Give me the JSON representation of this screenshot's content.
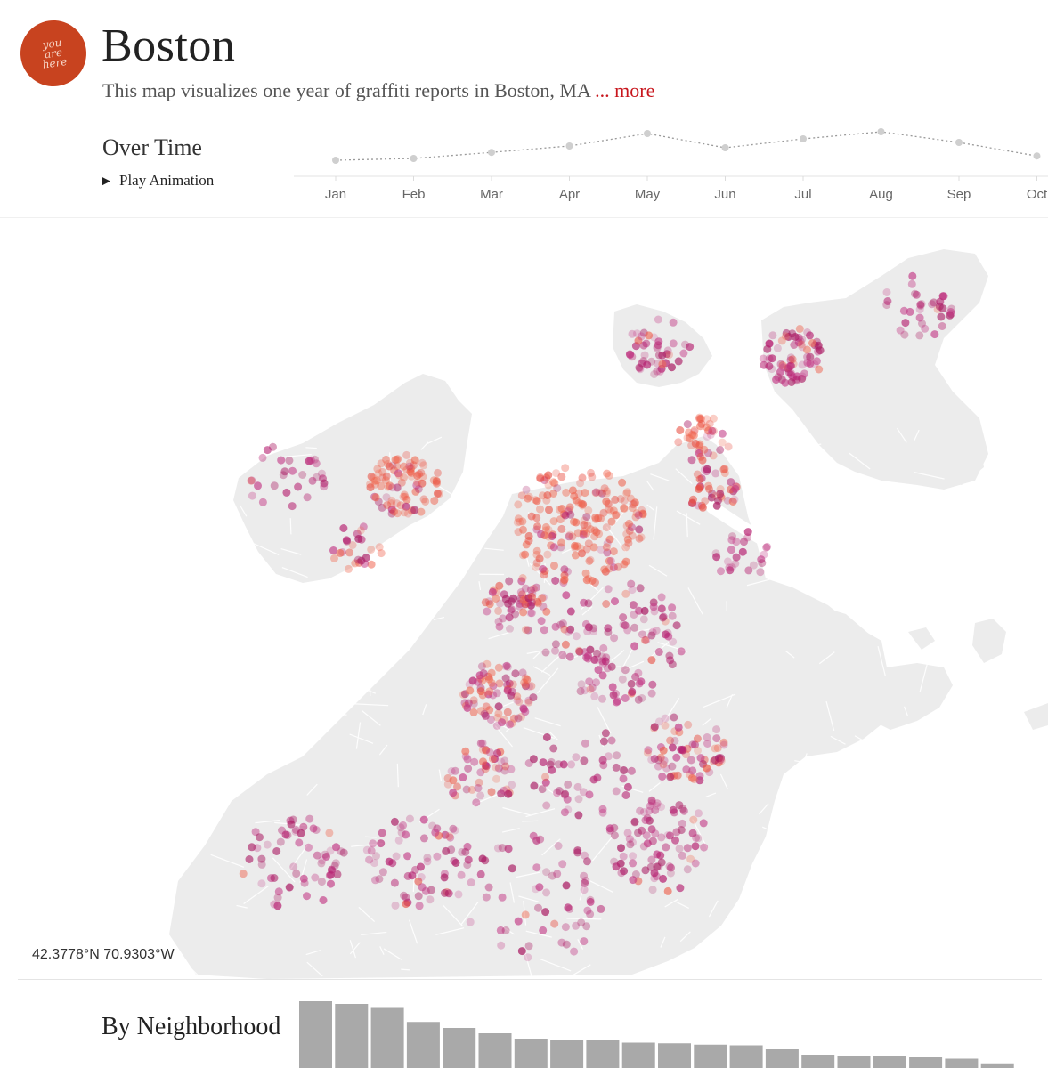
{
  "header": {
    "logo_text": "you\nare\nhere",
    "title": "Boston",
    "subtitle": "This map visualizes one year of graffiti reports in Boston, MA",
    "more_link": "... more"
  },
  "over_time": {
    "heading": "Over Time",
    "play_label": "Play Animation",
    "months": [
      "Jan",
      "Feb",
      "Mar",
      "Apr",
      "May",
      "Jun",
      "Jul",
      "Aug",
      "Sep",
      "Oct"
    ],
    "values": [
      0.2,
      0.25,
      0.42,
      0.6,
      0.95,
      0.55,
      0.8,
      1.0,
      0.7,
      0.32
    ]
  },
  "map": {
    "coordinates": "42.3778°N 70.9303°W",
    "colors": {
      "land": "#ececec",
      "water": "#ffffff",
      "dot_dense": "#e8493c",
      "dot_sparse": "#b51d6e"
    }
  },
  "by_neighborhood": {
    "heading": "By Neighborhood",
    "values": [
      1.0,
      0.96,
      0.9,
      0.69,
      0.6,
      0.52,
      0.44,
      0.42,
      0.42,
      0.38,
      0.37,
      0.35,
      0.34,
      0.28,
      0.2,
      0.18,
      0.18,
      0.16,
      0.14,
      0.07
    ],
    "bar_color": "#a9a9a9"
  }
}
